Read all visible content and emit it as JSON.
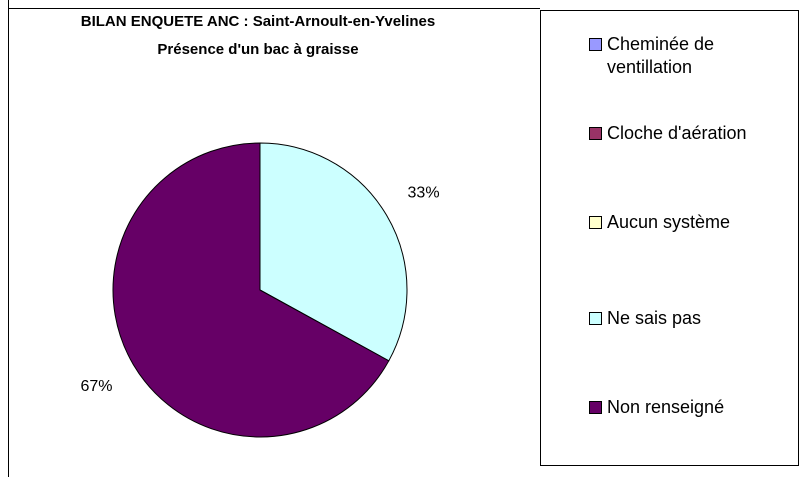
{
  "chart_data": {
    "type": "pie",
    "title": "BILAN ENQUETE ANC : Saint-Arnoult-en-Yvelines",
    "subtitle": "Présence d'un bac à graisse",
    "categories": [
      "Cheminée de ventillation",
      "Cloche d'aération",
      "Aucun système",
      "Ne sais pas",
      "Non renseigné"
    ],
    "values": [
      0,
      0,
      0,
      33,
      67
    ],
    "value_labels": [
      null,
      null,
      null,
      "33%",
      "67%"
    ],
    "colors": [
      "#9999ff",
      "#993366",
      "#ffffcc",
      "#ccffff",
      "#660066"
    ],
    "legend": "right"
  }
}
